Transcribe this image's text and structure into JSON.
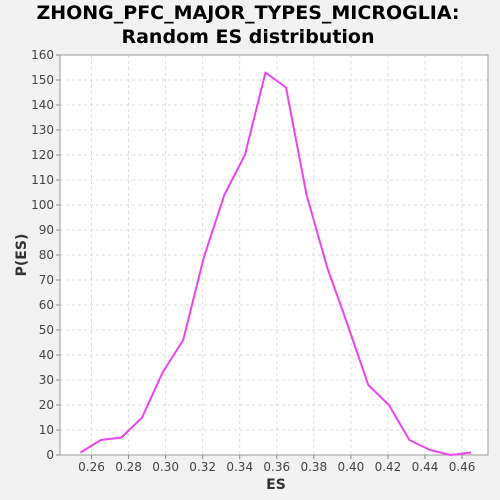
{
  "chart_data": {
    "type": "line",
    "title_lines": [
      "ZHONG_PFC_MAJOR_TYPES_MICROGLIA:",
      "Random ES distribution"
    ],
    "xlabel": "ES",
    "ylabel": "P(ES)",
    "xlim": [
      0.243,
      0.474
    ],
    "ylim": [
      0,
      160
    ],
    "x_ticks": [
      0.26,
      0.28,
      0.3,
      0.32,
      0.34,
      0.36,
      0.38,
      0.4,
      0.42,
      0.44,
      0.46
    ],
    "x_tick_labels": [
      "0.26",
      "0.28",
      "0.30",
      "0.32",
      "0.34",
      "0.36",
      "0.38",
      "0.40",
      "0.42",
      "0.44",
      "0.46"
    ],
    "y_ticks": [
      0,
      10,
      20,
      30,
      40,
      50,
      60,
      70,
      80,
      90,
      100,
      110,
      120,
      130,
      140,
      150,
      160
    ],
    "y_tick_labels": [
      "0",
      "10",
      "20",
      "30",
      "40",
      "50",
      "60",
      "70",
      "80",
      "90",
      "100",
      "110",
      "120",
      "130",
      "140",
      "150",
      "160"
    ],
    "grid": true,
    "series": [
      {
        "color": "#ee44ee",
        "x": [
          0.254,
          0.2651,
          0.2762,
          0.2873,
          0.2984,
          0.3095,
          0.3206,
          0.3317,
          0.3428,
          0.3539,
          0.365,
          0.3761,
          0.3872,
          0.3983,
          0.4094,
          0.4205,
          0.4316,
          0.4427,
          0.4538,
          0.4649
        ],
        "values": [
          1,
          6,
          7,
          15,
          33,
          46,
          79,
          104,
          120,
          153,
          147,
          104,
          75,
          52,
          28,
          20,
          6,
          2,
          0,
          1
        ]
      }
    ]
  }
}
